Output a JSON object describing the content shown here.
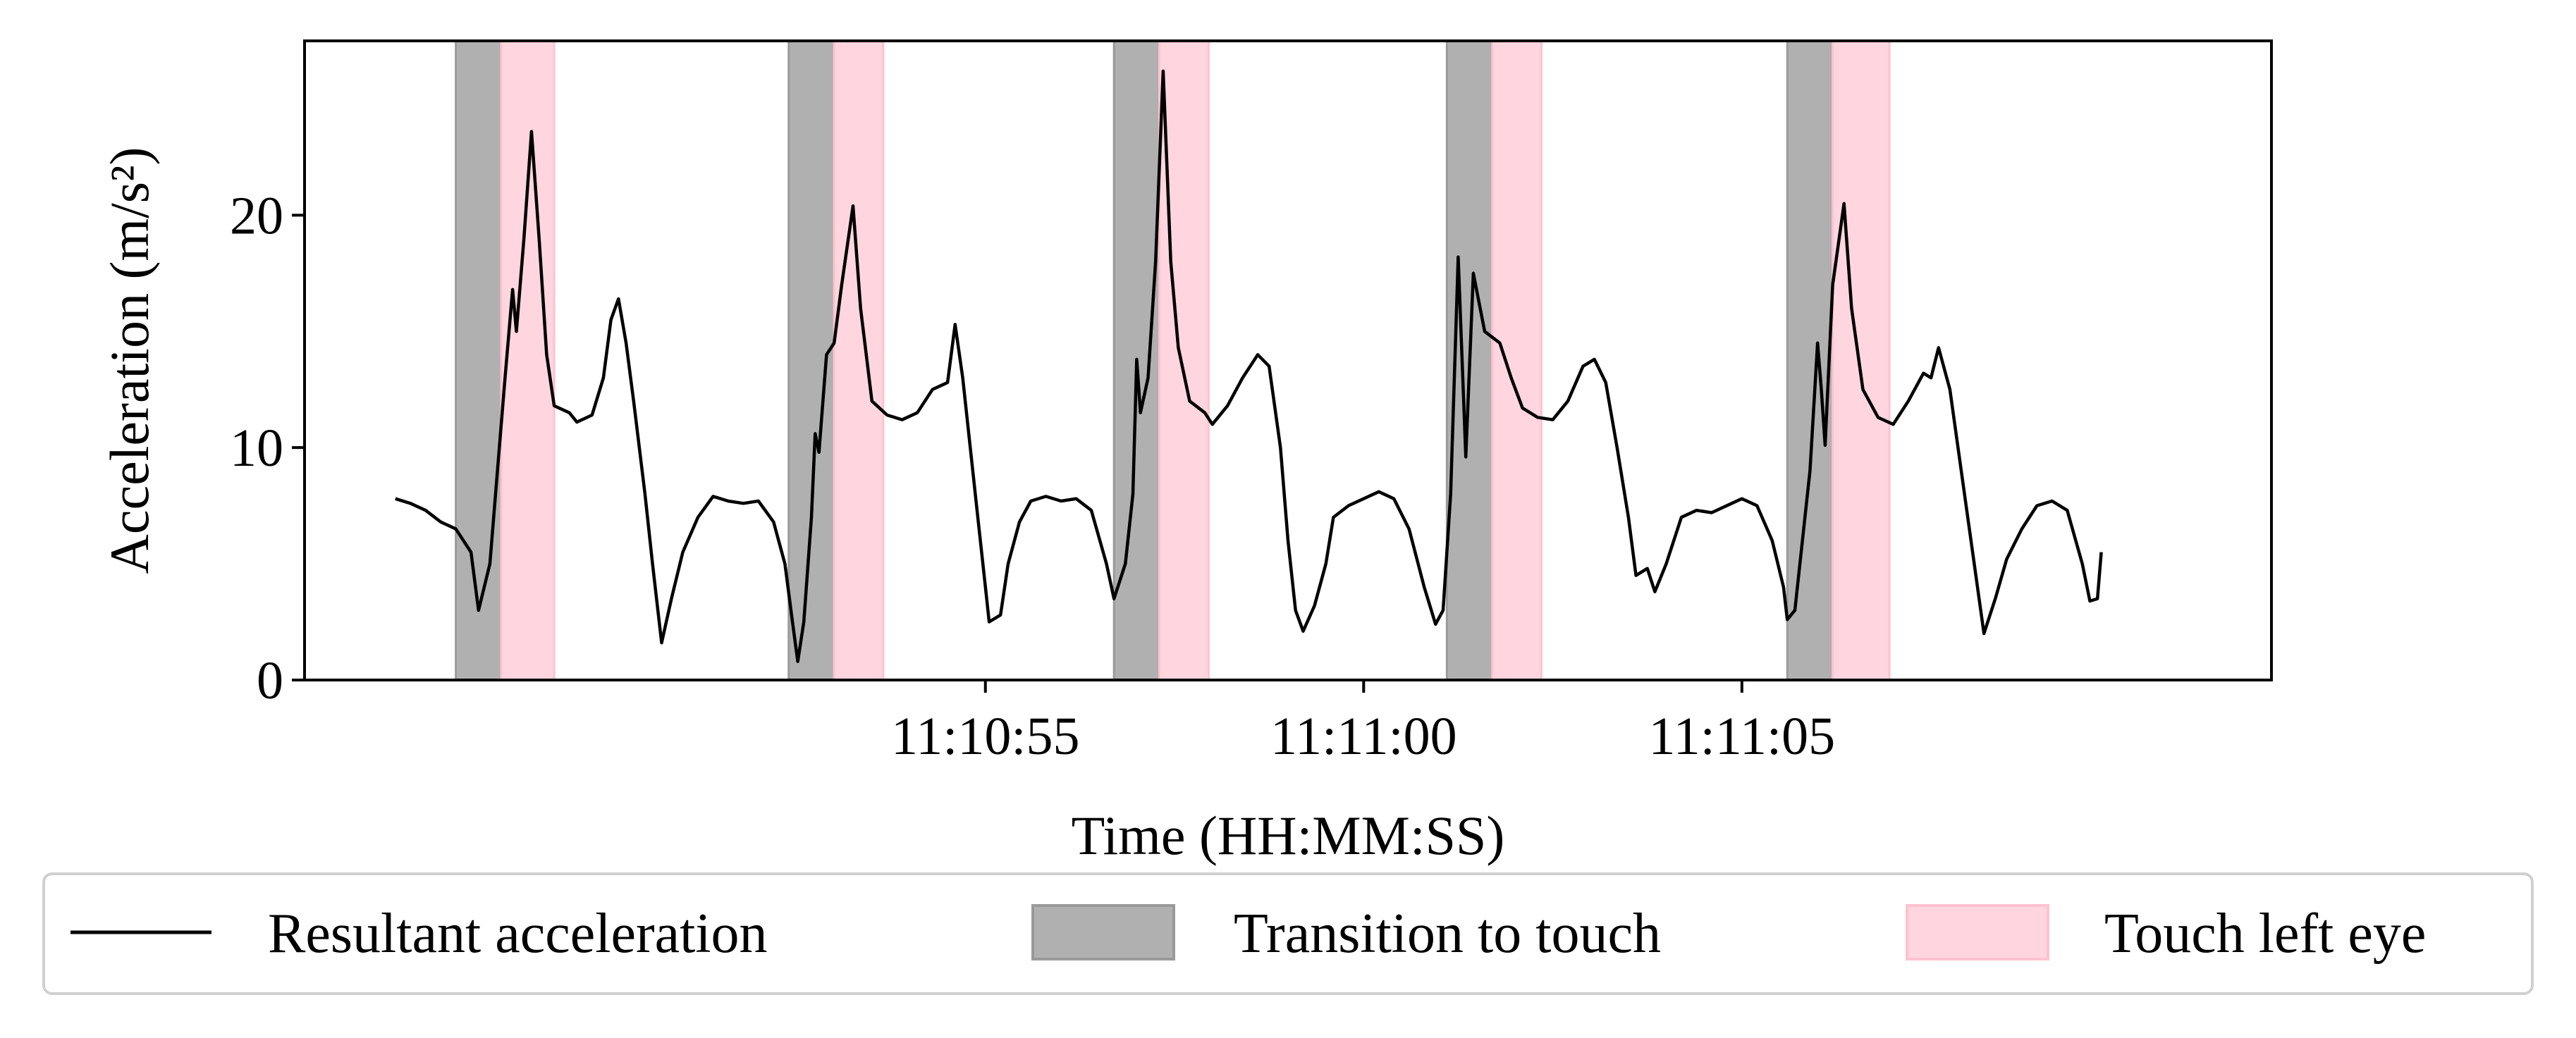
{
  "chart_data": {
    "type": "line",
    "xlabel": "Time (HH:MM:SS)",
    "ylabel": "Acceleration (m/s²)",
    "xlim": [
      46.0,
      72.0
    ],
    "ylim": [
      0,
      27.5
    ],
    "x_ticks": [
      {
        "value": 55,
        "label": "11:10:55"
      },
      {
        "value": 60,
        "label": "11:11:00"
      },
      {
        "value": 65,
        "label": "11:11:05"
      }
    ],
    "y_ticks": [
      0,
      10,
      20
    ],
    "grid": false,
    "legend": {
      "placement": "bottom",
      "entries": [
        {
          "label": "Resultant acceleration",
          "kind": "line",
          "color": "#000000"
        },
        {
          "label": "Transition to touch",
          "kind": "patch",
          "color": "#b0b0b0"
        },
        {
          "label": "Touch left eye",
          "kind": "patch",
          "color": "#ffd6df"
        }
      ]
    },
    "bands": [
      {
        "name": "Transition to touch",
        "ranges": [
          [
            48.0,
            48.6
          ],
          [
            52.4,
            53.0
          ],
          [
            56.7,
            57.3
          ],
          [
            61.1,
            61.7
          ],
          [
            65.6,
            66.2
          ]
        ]
      },
      {
        "name": "Touch left eye",
        "ranges": [
          [
            48.6,
            49.3
          ],
          [
            53.0,
            53.65
          ],
          [
            57.3,
            57.95
          ],
          [
            61.7,
            62.35
          ],
          [
            66.2,
            66.95
          ]
        ]
      }
    ],
    "series": [
      {
        "name": "Resultant acceleration",
        "color": "#000000",
        "points": [
          [
            47.2,
            7.8
          ],
          [
            47.4,
            7.6
          ],
          [
            47.6,
            7.3
          ],
          [
            47.8,
            6.8
          ],
          [
            48.0,
            6.5
          ],
          [
            48.2,
            5.5
          ],
          [
            48.3,
            3.0
          ],
          [
            48.45,
            5.0
          ],
          [
            48.55,
            9.0
          ],
          [
            48.65,
            13.0
          ],
          [
            48.75,
            16.8
          ],
          [
            48.8,
            15.0
          ],
          [
            48.9,
            19.0
          ],
          [
            49.0,
            23.6
          ],
          [
            49.1,
            19.0
          ],
          [
            49.2,
            14.0
          ],
          [
            49.3,
            11.8
          ],
          [
            49.5,
            11.5
          ],
          [
            49.6,
            11.1
          ],
          [
            49.8,
            11.4
          ],
          [
            49.95,
            13.0
          ],
          [
            50.05,
            15.5
          ],
          [
            50.15,
            16.4
          ],
          [
            50.25,
            14.5
          ],
          [
            50.35,
            12.0
          ],
          [
            50.5,
            8.0
          ],
          [
            50.6,
            5.0
          ],
          [
            50.72,
            1.6
          ],
          [
            50.85,
            3.5
          ],
          [
            51.0,
            5.5
          ],
          [
            51.2,
            7.0
          ],
          [
            51.4,
            7.9
          ],
          [
            51.6,
            7.7
          ],
          [
            51.8,
            7.6
          ],
          [
            52.0,
            7.7
          ],
          [
            52.2,
            6.8
          ],
          [
            52.35,
            5.0
          ],
          [
            52.45,
            2.5
          ],
          [
            52.52,
            0.8
          ],
          [
            52.6,
            2.5
          ],
          [
            52.7,
            7.0
          ],
          [
            52.75,
            10.6
          ],
          [
            52.8,
            9.8
          ],
          [
            52.9,
            14.0
          ],
          [
            53.0,
            14.5
          ],
          [
            53.1,
            17.0
          ],
          [
            53.25,
            20.4
          ],
          [
            53.35,
            16.0
          ],
          [
            53.5,
            12.0
          ],
          [
            53.7,
            11.4
          ],
          [
            53.9,
            11.2
          ],
          [
            54.1,
            11.5
          ],
          [
            54.3,
            12.5
          ],
          [
            54.5,
            12.8
          ],
          [
            54.6,
            15.3
          ],
          [
            54.7,
            13.0
          ],
          [
            54.8,
            10.0
          ],
          [
            54.9,
            7.0
          ],
          [
            55.0,
            4.0
          ],
          [
            55.05,
            2.5
          ],
          [
            55.2,
            2.8
          ],
          [
            55.3,
            5.0
          ],
          [
            55.45,
            6.8
          ],
          [
            55.6,
            7.7
          ],
          [
            55.8,
            7.9
          ],
          [
            56.0,
            7.7
          ],
          [
            56.2,
            7.8
          ],
          [
            56.4,
            7.3
          ],
          [
            56.6,
            5.0
          ],
          [
            56.7,
            3.5
          ],
          [
            56.85,
            5.0
          ],
          [
            56.95,
            8.0
          ],
          [
            57.0,
            13.8
          ],
          [
            57.05,
            11.5
          ],
          [
            57.15,
            13.0
          ],
          [
            57.25,
            18.0
          ],
          [
            57.35,
            26.2
          ],
          [
            57.45,
            18.0
          ],
          [
            57.55,
            14.3
          ],
          [
            57.7,
            12.0
          ],
          [
            57.9,
            11.5
          ],
          [
            58.0,
            11.0
          ],
          [
            58.2,
            11.8
          ],
          [
            58.4,
            13.0
          ],
          [
            58.6,
            14.0
          ],
          [
            58.75,
            13.5
          ],
          [
            58.9,
            10.0
          ],
          [
            59.0,
            6.0
          ],
          [
            59.1,
            3.0
          ],
          [
            59.2,
            2.1
          ],
          [
            59.35,
            3.2
          ],
          [
            59.5,
            5.0
          ],
          [
            59.6,
            7.0
          ],
          [
            59.8,
            7.5
          ],
          [
            60.0,
            7.8
          ],
          [
            60.2,
            8.1
          ],
          [
            60.4,
            7.8
          ],
          [
            60.6,
            6.5
          ],
          [
            60.8,
            4.0
          ],
          [
            60.95,
            2.4
          ],
          [
            61.05,
            3.0
          ],
          [
            61.15,
            8.0
          ],
          [
            61.25,
            18.2
          ],
          [
            61.35,
            9.6
          ],
          [
            61.45,
            17.5
          ],
          [
            61.6,
            15.0
          ],
          [
            61.8,
            14.5
          ],
          [
            61.95,
            13.0
          ],
          [
            62.1,
            11.7
          ],
          [
            62.3,
            11.3
          ],
          [
            62.5,
            11.2
          ],
          [
            62.7,
            12.0
          ],
          [
            62.9,
            13.5
          ],
          [
            63.05,
            13.8
          ],
          [
            63.2,
            12.8
          ],
          [
            63.35,
            10.0
          ],
          [
            63.5,
            7.0
          ],
          [
            63.6,
            4.5
          ],
          [
            63.75,
            4.8
          ],
          [
            63.85,
            3.8
          ],
          [
            64.0,
            5.0
          ],
          [
            64.2,
            7.0
          ],
          [
            64.4,
            7.3
          ],
          [
            64.6,
            7.2
          ],
          [
            64.8,
            7.5
          ],
          [
            65.0,
            7.8
          ],
          [
            65.2,
            7.5
          ],
          [
            65.4,
            6.0
          ],
          [
            65.55,
            4.0
          ],
          [
            65.6,
            2.6
          ],
          [
            65.7,
            3.0
          ],
          [
            65.8,
            6.0
          ],
          [
            65.9,
            9.0
          ],
          [
            66.0,
            14.5
          ],
          [
            66.05,
            12.5
          ],
          [
            66.1,
            10.1
          ],
          [
            66.2,
            17.0
          ],
          [
            66.35,
            20.5
          ],
          [
            66.45,
            16.0
          ],
          [
            66.6,
            12.5
          ],
          [
            66.8,
            11.3
          ],
          [
            67.0,
            11.0
          ],
          [
            67.2,
            12.0
          ],
          [
            67.4,
            13.2
          ],
          [
            67.5,
            13.0
          ],
          [
            67.6,
            14.3
          ],
          [
            67.75,
            12.5
          ],
          [
            67.9,
            9.0
          ],
          [
            68.05,
            5.5
          ],
          [
            68.2,
            2.0
          ],
          [
            68.35,
            3.5
          ],
          [
            68.5,
            5.2
          ],
          [
            68.7,
            6.5
          ],
          [
            68.9,
            7.5
          ],
          [
            69.1,
            7.7
          ],
          [
            69.3,
            7.3
          ],
          [
            69.5,
            5.0
          ],
          [
            69.6,
            3.4
          ],
          [
            69.7,
            3.5
          ],
          [
            69.75,
            5.5
          ]
        ]
      }
    ]
  }
}
